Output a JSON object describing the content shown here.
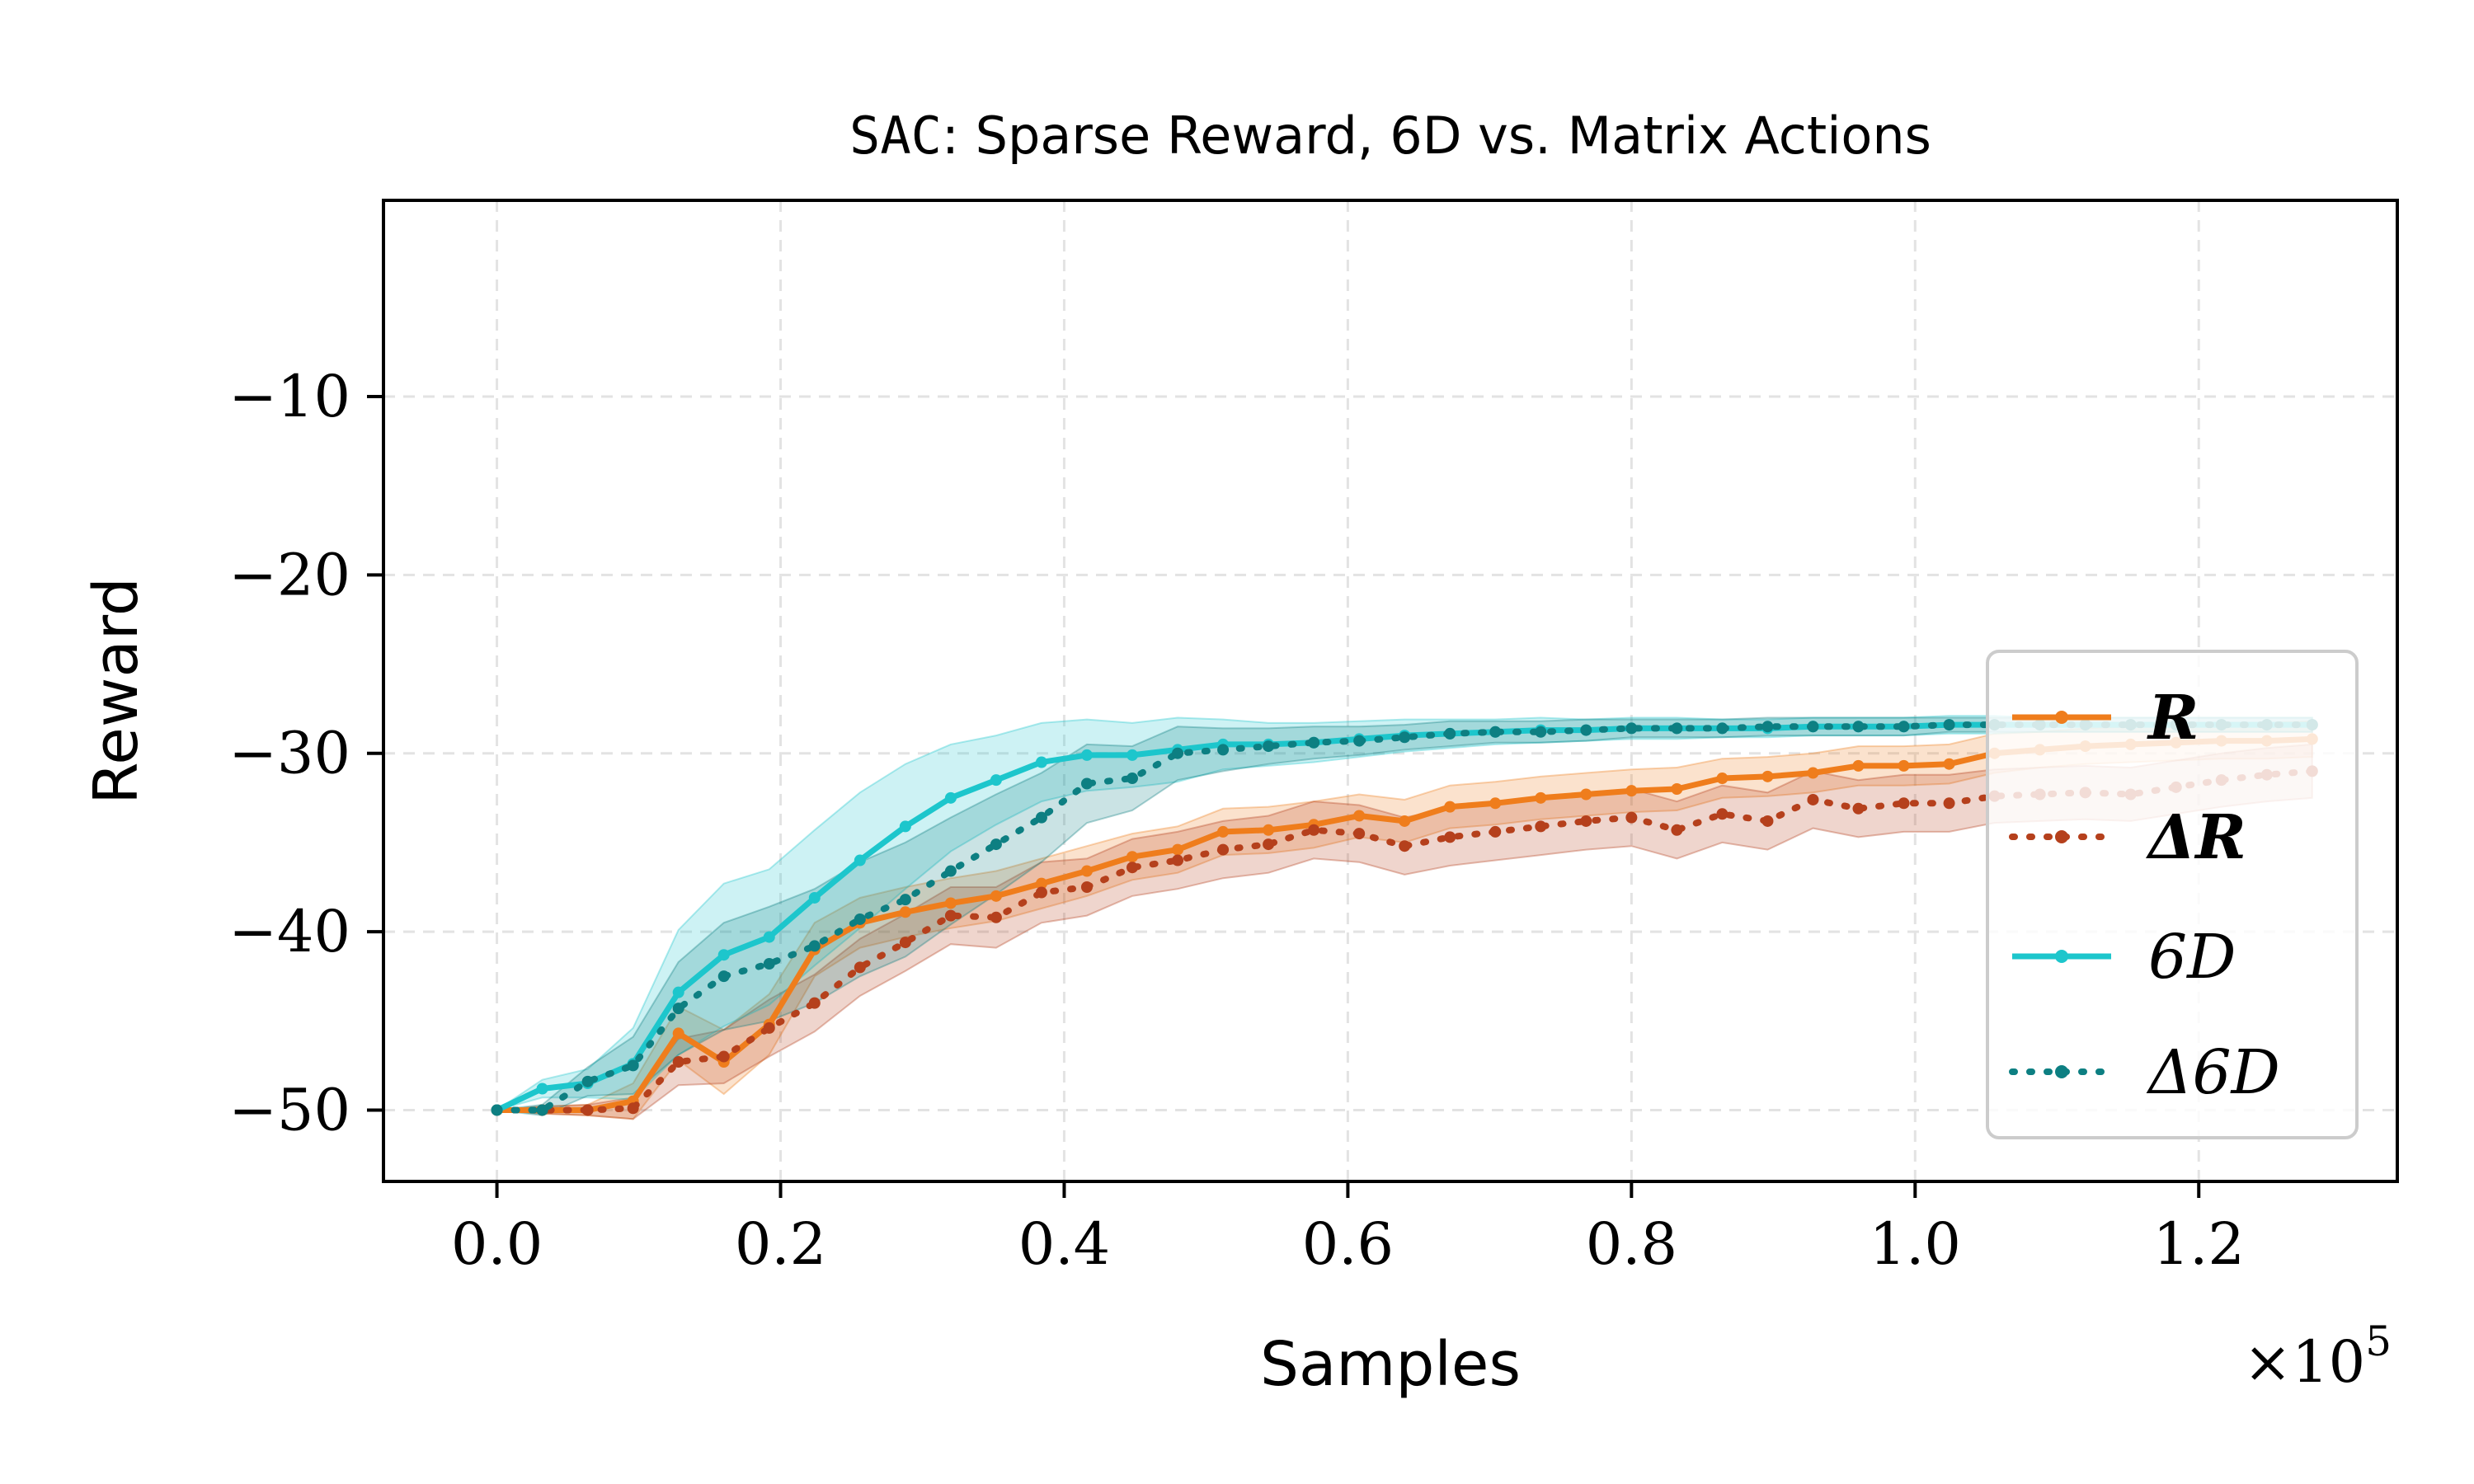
{
  "chart_data": {
    "type": "line",
    "title_prefix": "SAC",
    "title_rest": ": Sparse Reward, 6D vs. Matrix Actions",
    "xlabel": "Samples",
    "ylabel": "Reward",
    "x_multiplier_label": "×10",
    "x_multiplier_exp": "5",
    "xlim": [
      -0.08,
      1.34
    ],
    "ylim": [
      -54,
      1
    ],
    "xticks": [
      0.0,
      0.2,
      0.4,
      0.6,
      0.8,
      1.0,
      1.2
    ],
    "xtick_labels": [
      "0.0",
      "0.2",
      "0.4",
      "0.6",
      "0.8",
      "1.0",
      "1.2"
    ],
    "yticks": [
      -10,
      -20,
      -30,
      -40,
      -50
    ],
    "ytick_labels": [
      "−10",
      "−20",
      "−30",
      "−40",
      "−50"
    ],
    "grid": true,
    "legend_position": "center-right",
    "x": [
      0.0,
      0.032,
      0.064,
      0.096,
      0.128,
      0.16,
      0.192,
      0.224,
      0.256,
      0.288,
      0.32,
      0.352,
      0.384,
      0.416,
      0.448,
      0.48,
      0.512,
      0.544,
      0.576,
      0.608,
      0.64,
      0.672,
      0.704,
      0.736,
      0.768,
      0.8,
      0.832,
      0.864,
      0.896,
      0.928,
      0.96,
      0.992,
      1.024,
      1.056,
      1.088,
      1.12,
      1.152,
      1.184,
      1.216,
      1.248,
      1.28
    ],
    "series": [
      {
        "name": "R",
        "legend_label": "R",
        "legend_bold": true,
        "color": "#ef7d1c",
        "style": "solid",
        "values": [
          -50.0,
          -50.0,
          -50.0,
          -49.5,
          -45.7,
          -47.3,
          -45.2,
          -41.0,
          -39.5,
          -38.9,
          -38.4,
          -38.0,
          -37.3,
          -36.6,
          -35.8,
          -35.4,
          -34.4,
          -34.3,
          -34.0,
          -33.5,
          -33.8,
          -33.0,
          -32.8,
          -32.5,
          -32.3,
          -32.1,
          -32.0,
          -31.4,
          -31.3,
          -31.1,
          -30.7,
          -30.7,
          -30.6,
          -30.0,
          -29.8,
          -29.6,
          -29.5,
          -29.4,
          -29.3,
          -29.3,
          -29.2
        ],
        "band": [
          0,
          0.2,
          0.3,
          1.0,
          1.5,
          1.8,
          1.7,
          1.5,
          1.4,
          1.4,
          1.4,
          1.4,
          1.4,
          1.4,
          1.3,
          1.3,
          1.3,
          1.3,
          1.3,
          1.2,
          1.2,
          1.2,
          1.2,
          1.2,
          1.2,
          1.2,
          1.2,
          1.1,
          1.1,
          1.1,
          1.1,
          1.1,
          1.1,
          1.1,
          1.0,
          1.0,
          1.0,
          1.0,
          1.0,
          1.0,
          1.0
        ]
      },
      {
        "name": "ΔR",
        "legend_label": "ΔR",
        "legend_bold": true,
        "color": "#b5401c",
        "style": "dotted",
        "values": [
          -50.0,
          -50.0,
          -50.0,
          -49.9,
          -47.3,
          -47.0,
          -45.4,
          -44.0,
          -42.0,
          -40.6,
          -39.1,
          -39.2,
          -37.8,
          -37.5,
          -36.4,
          -36.0,
          -35.4,
          -35.1,
          -34.3,
          -34.5,
          -35.2,
          -34.7,
          -34.4,
          -34.1,
          -33.8,
          -33.6,
          -34.3,
          -33.4,
          -33.8,
          -32.6,
          -33.1,
          -32.8,
          -32.8,
          -32.4,
          -32.3,
          -32.2,
          -32.3,
          -31.9,
          -31.5,
          -31.2,
          -31.0
        ],
        "band": [
          0,
          0.2,
          0.3,
          0.6,
          1.3,
          1.5,
          1.6,
          1.6,
          1.6,
          1.6,
          1.6,
          1.7,
          1.7,
          1.6,
          1.6,
          1.6,
          1.6,
          1.6,
          1.6,
          1.6,
          1.6,
          1.6,
          1.6,
          1.6,
          1.6,
          1.6,
          1.6,
          1.6,
          1.6,
          1.6,
          1.6,
          1.6,
          1.6,
          1.5,
          1.5,
          1.5,
          1.5,
          1.5,
          1.5,
          1.5,
          1.5
        ]
      },
      {
        "name": "6D",
        "legend_label": "6D",
        "legend_bold": false,
        "color": "#1dc6cc",
        "style": "solid",
        "values": [
          -50.0,
          -48.8,
          -48.5,
          -47.4,
          -43.4,
          -41.3,
          -40.3,
          -38.1,
          -36.0,
          -34.1,
          -32.5,
          -31.5,
          -30.5,
          -30.1,
          -30.1,
          -29.8,
          -29.5,
          -29.5,
          -29.4,
          -29.2,
          -29.0,
          -28.9,
          -28.8,
          -28.7,
          -28.7,
          -28.6,
          -28.6,
          -28.6,
          -28.6,
          -28.5,
          -28.5,
          -28.5,
          -28.4,
          -28.4,
          -28.4,
          -28.4,
          -28.4,
          -28.4,
          -28.4,
          -28.4,
          -28.4
        ],
        "band": [
          0,
          0.5,
          0.8,
          2.0,
          3.5,
          4.0,
          3.8,
          3.8,
          3.8,
          3.5,
          3.0,
          2.5,
          2.2,
          2.0,
          1.8,
          1.8,
          1.4,
          1.2,
          1.1,
          1.0,
          0.9,
          0.8,
          0.7,
          0.7,
          0.6,
          0.6,
          0.6,
          0.5,
          0.5,
          0.5,
          0.5,
          0.5,
          0.5,
          0.5,
          0.4,
          0.4,
          0.4,
          0.4,
          0.4,
          0.4,
          0.4
        ]
      },
      {
        "name": "Δ6D",
        "legend_label": "Δ6D",
        "legend_bold": false,
        "color": "#0d7f82",
        "style": "dotted",
        "values": [
          -50.0,
          -50.0,
          -48.4,
          -47.5,
          -44.3,
          -42.5,
          -41.8,
          -40.8,
          -39.3,
          -38.2,
          -36.6,
          -35.1,
          -33.6,
          -31.7,
          -31.4,
          -30.0,
          -29.8,
          -29.6,
          -29.4,
          -29.3,
          -29.1,
          -28.9,
          -28.8,
          -28.8,
          -28.7,
          -28.6,
          -28.6,
          -28.6,
          -28.5,
          -28.5,
          -28.5,
          -28.5,
          -28.4,
          -28.4,
          -28.4,
          -28.4,
          -28.4,
          -28.4,
          -28.4,
          -28.4,
          -28.4
        ],
        "band": [
          0,
          0.3,
          0.8,
          1.6,
          2.6,
          3.0,
          3.2,
          3.2,
          3.2,
          3.2,
          3.0,
          2.8,
          2.5,
          2.2,
          1.8,
          1.5,
          1.2,
          1.0,
          0.9,
          0.8,
          0.7,
          0.7,
          0.6,
          0.6,
          0.6,
          0.5,
          0.5,
          0.5,
          0.5,
          0.5,
          0.5,
          0.5,
          0.4,
          0.4,
          0.4,
          0.4,
          0.4,
          0.4,
          0.4,
          0.4,
          0.4
        ]
      }
    ]
  }
}
